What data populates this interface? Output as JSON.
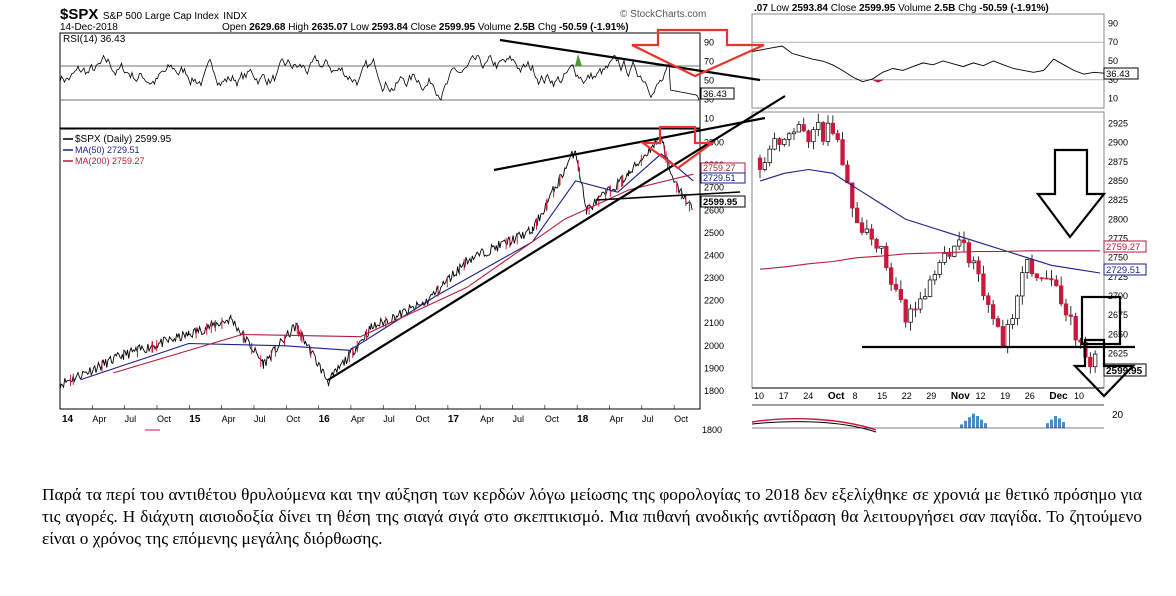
{
  "header": {
    "symbol": "$SPX",
    "name": "S&P 500 Large Cap Index",
    "exchange": "INDX",
    "source": "© StockCharts.com",
    "date": "14-Dec-2018",
    "open_label": "Open",
    "open": "2629.68",
    "high_label": "High",
    "high": "2635.07",
    "low_label": "Low",
    "low": "2593.84",
    "close_label": "Close",
    "close": "2599.95",
    "volume_label": "Volume",
    "volume": "2.5B",
    "chg_label": "Chg",
    "chg": "-50.59 (-1.91%)",
    "right_prefix": ".07"
  },
  "rsi": {
    "label": "RSI(14)",
    "value": "36.43",
    "ticks": [
      "90",
      "70",
      "50",
      "30",
      "10"
    ]
  },
  "legend": {
    "price": "$SPX (Daily) 2599.95",
    "ma50": "MA(50) 2729.51",
    "ma200": "MA(200) 2759.27"
  },
  "badges": {
    "ma200": "2759.27",
    "ma50": "2729.51",
    "close": "2599.95"
  },
  "colors": {
    "ma50": "#1b1f8a",
    "ma200": "#b41d3b",
    "down_candle": "#c8183c",
    "annotation": "#e8342c",
    "volume": "#4a8dc4"
  },
  "chart_data": [
    {
      "type": "line",
      "title": "$SPX (Daily) 2599.95",
      "series": [
        {
          "name": "$SPX (Daily) 2599.95",
          "x": [
            "2014-01",
            "2014-07",
            "2015-01",
            "2015-05",
            "2015-08",
            "2015-11",
            "2016-02",
            "2016-06",
            "2016-11",
            "2017-03",
            "2017-09",
            "2018-01",
            "2018-02",
            "2018-06",
            "2018-09",
            "2018-10",
            "2018-12"
          ],
          "values": [
            1830,
            1960,
            2050,
            2120,
            1920,
            2090,
            1840,
            2080,
            2190,
            2380,
            2510,
            2870,
            2600,
            2760,
            2930,
            2740,
            2600
          ]
        },
        {
          "name": "MA(50) 2729.51",
          "x": [
            "2014-03",
            "2015-01",
            "2015-10",
            "2016-04",
            "2016-12",
            "2017-09",
            "2018-01",
            "2018-05",
            "2018-09",
            "2018-12"
          ],
          "values": [
            1850,
            2010,
            2000,
            1980,
            2220,
            2460,
            2730,
            2680,
            2850,
            2730
          ]
        },
        {
          "name": "MA(200) 2759.27",
          "x": [
            "2014-06",
            "2015-06",
            "2016-05",
            "2017-03",
            "2017-12",
            "2018-06",
            "2018-12"
          ],
          "values": [
            1880,
            2050,
            2040,
            2260,
            2560,
            2690,
            2760
          ]
        }
      ],
      "yticks": [
        "2900",
        "2800",
        "2700",
        "2600",
        "2500",
        "2400",
        "2300",
        "2200",
        "2100",
        "2000",
        "1900",
        "1800"
      ],
      "xticks": [
        "14",
        "Apr",
        "Jul",
        "Oct",
        "15",
        "Apr",
        "Jul",
        "Oct",
        "16",
        "Apr",
        "Jul",
        "Oct",
        "17",
        "Apr",
        "Jul",
        "Oct",
        "18",
        "Apr",
        "Jul",
        "Oct"
      ],
      "ylim": [
        1720,
        2960
      ]
    },
    {
      "type": "line",
      "title": "RSI(14) 36.43",
      "yticks": [
        "90",
        "70",
        "50",
        "30",
        "10"
      ],
      "ylim": [
        0,
        100
      ]
    },
    {
      "type": "bar",
      "title": "",
      "yticks": [
        "2925",
        "2900",
        "2875",
        "2850",
        "2825",
        "2800",
        "2775",
        "2750",
        "2725",
        "2700",
        "2675",
        "2650",
        "2625",
        "2600"
      ],
      "xticks": [
        "10",
        "17",
        "24",
        "Oct",
        "8",
        "15",
        "22",
        "29",
        "Nov",
        "12",
        "19",
        "26",
        "Dec",
        "10"
      ],
      "ylim": [
        2580,
        2940
      ],
      "categories": [
        "Sep-10",
        "Sep-17",
        "Sep-24",
        "Oct-01",
        "Oct-08",
        "Oct-15",
        "Oct-22",
        "Oct-29",
        "Nov-05",
        "Nov-12",
        "Nov-19",
        "Nov-26",
        "Dec-03",
        "Dec-10",
        "Dec-14"
      ],
      "values": [
        2880,
        2905,
        2915,
        2915,
        2785,
        2770,
        2660,
        2710,
        2780,
        2720,
        2640,
        2740,
        2720,
        2650,
        2600
      ],
      "ma50": [
        2850,
        2860,
        2865,
        2860,
        2840,
        2820,
        2800,
        2790,
        2780,
        2770,
        2760,
        2750,
        2740,
        2735,
        2730
      ],
      "ma200": [
        2735,
        2738,
        2742,
        2745,
        2750,
        2752,
        2755,
        2756,
        2757,
        2758,
        2758,
        2759,
        2759,
        2759,
        2759
      ]
    }
  ],
  "right_axis_bottom": "1800",
  "right_volume_tick": "20",
  "caption": "Παρά τα περί του αντιθέτου θρυλούμενα και την αύξηση των κερδών λόγω μείωσης της φορολογίας το 2018 δεν εξελίχθηκε σε χρονιά με θετικό πρόσημο για τις αγορές.  Η διάχυτη αισιοδοξία δίνει τη θέση της σιαγά σιγά στο σκεπτικισμό. Μια πιθανή ανοδικής αντίδραση θα λειτουργήσει σαν παγίδα. Το ζητούμενο είναι ο χρόνος της επόμενης μεγάλης διόρθωσης."
}
